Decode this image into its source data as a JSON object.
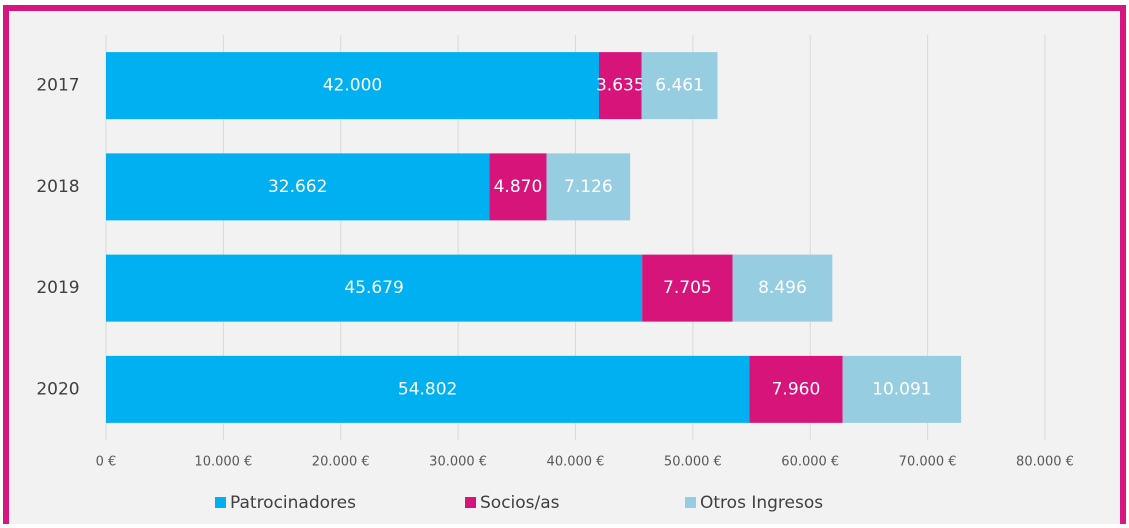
{
  "chart_data": {
    "type": "stacked_bar_horizontal",
    "categories": [
      "2017",
      "2018",
      "2019",
      "2020"
    ],
    "series": [
      {
        "name": "Patrocinadores",
        "color": "#00b0f0",
        "values": [
          42000,
          32662,
          45679,
          54802
        ],
        "value_labels": [
          "42.000",
          "32.662",
          "45.679",
          "54.802"
        ]
      },
      {
        "name": "Socios/as",
        "color": "#d6147a",
        "values": [
          3635,
          4870,
          7705,
          7960
        ],
        "value_labels": [
          "3.635",
          "4.870",
          "7.705",
          "7.960"
        ]
      },
      {
        "name": "Otros Ingresos",
        "color": "#96cde0",
        "values": [
          6461,
          7126,
          8496,
          10091
        ],
        "value_labels": [
          "6.461",
          "7.126",
          "8.496",
          "10.091"
        ]
      }
    ],
    "xlim": [
      0,
      80000
    ],
    "xticks": [
      {
        "value": 0,
        "label": "0 €"
      },
      {
        "value": 10000,
        "label": "10.000 €"
      },
      {
        "value": 20000,
        "label": "20.000 €"
      },
      {
        "value": 30000,
        "label": "30.000 €"
      },
      {
        "value": 40000,
        "label": "40.000 €"
      },
      {
        "value": 50000,
        "label": "50.000 €"
      },
      {
        "value": 60000,
        "label": "60.000 €"
      },
      {
        "value": 70000,
        "label": "70.000 €"
      },
      {
        "value": 80000,
        "label": "80.000 €"
      }
    ],
    "grid": true,
    "legend": "bottom"
  }
}
